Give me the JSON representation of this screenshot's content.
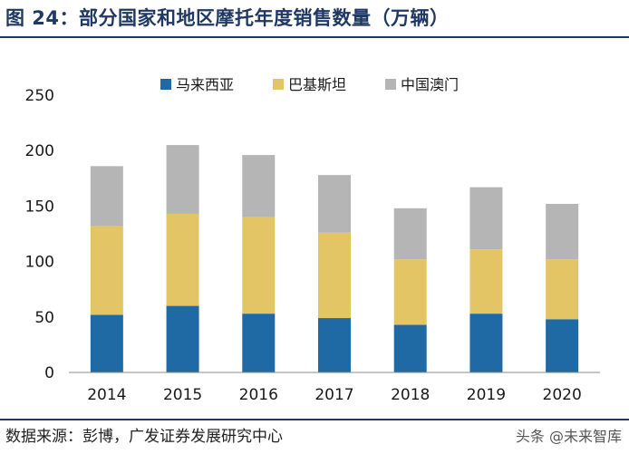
{
  "header": {
    "title": "图 24：部分国家和地区摩托年度销售数量（万辆）"
  },
  "footer": {
    "source": "数据来源：彭博，广发证券发展研究中心",
    "watermark": "头条 @未来智库"
  },
  "chart_data": {
    "type": "bar",
    "stacked": true,
    "categories": [
      "2014",
      "2015",
      "2016",
      "2017",
      "2018",
      "2019",
      "2020"
    ],
    "series": [
      {
        "name": "马来西亚",
        "color": "#1f6aa5",
        "values": [
          52,
          60,
          53,
          49,
          43,
          53,
          48
        ]
      },
      {
        "name": "巴基斯坦",
        "color": "#e3c566",
        "values": [
          80,
          83,
          87,
          77,
          59,
          58,
          54
        ]
      },
      {
        "name": "中国澳门",
        "color": "#b5b5b5",
        "values": [
          54,
          62,
          56,
          52,
          46,
          56,
          50
        ]
      }
    ],
    "ylim": [
      0,
      250
    ],
    "yticks": [
      0,
      50,
      100,
      150,
      200,
      250
    ],
    "xlabel": "",
    "ylabel": "",
    "grid": false,
    "legend_position": "top-center"
  }
}
